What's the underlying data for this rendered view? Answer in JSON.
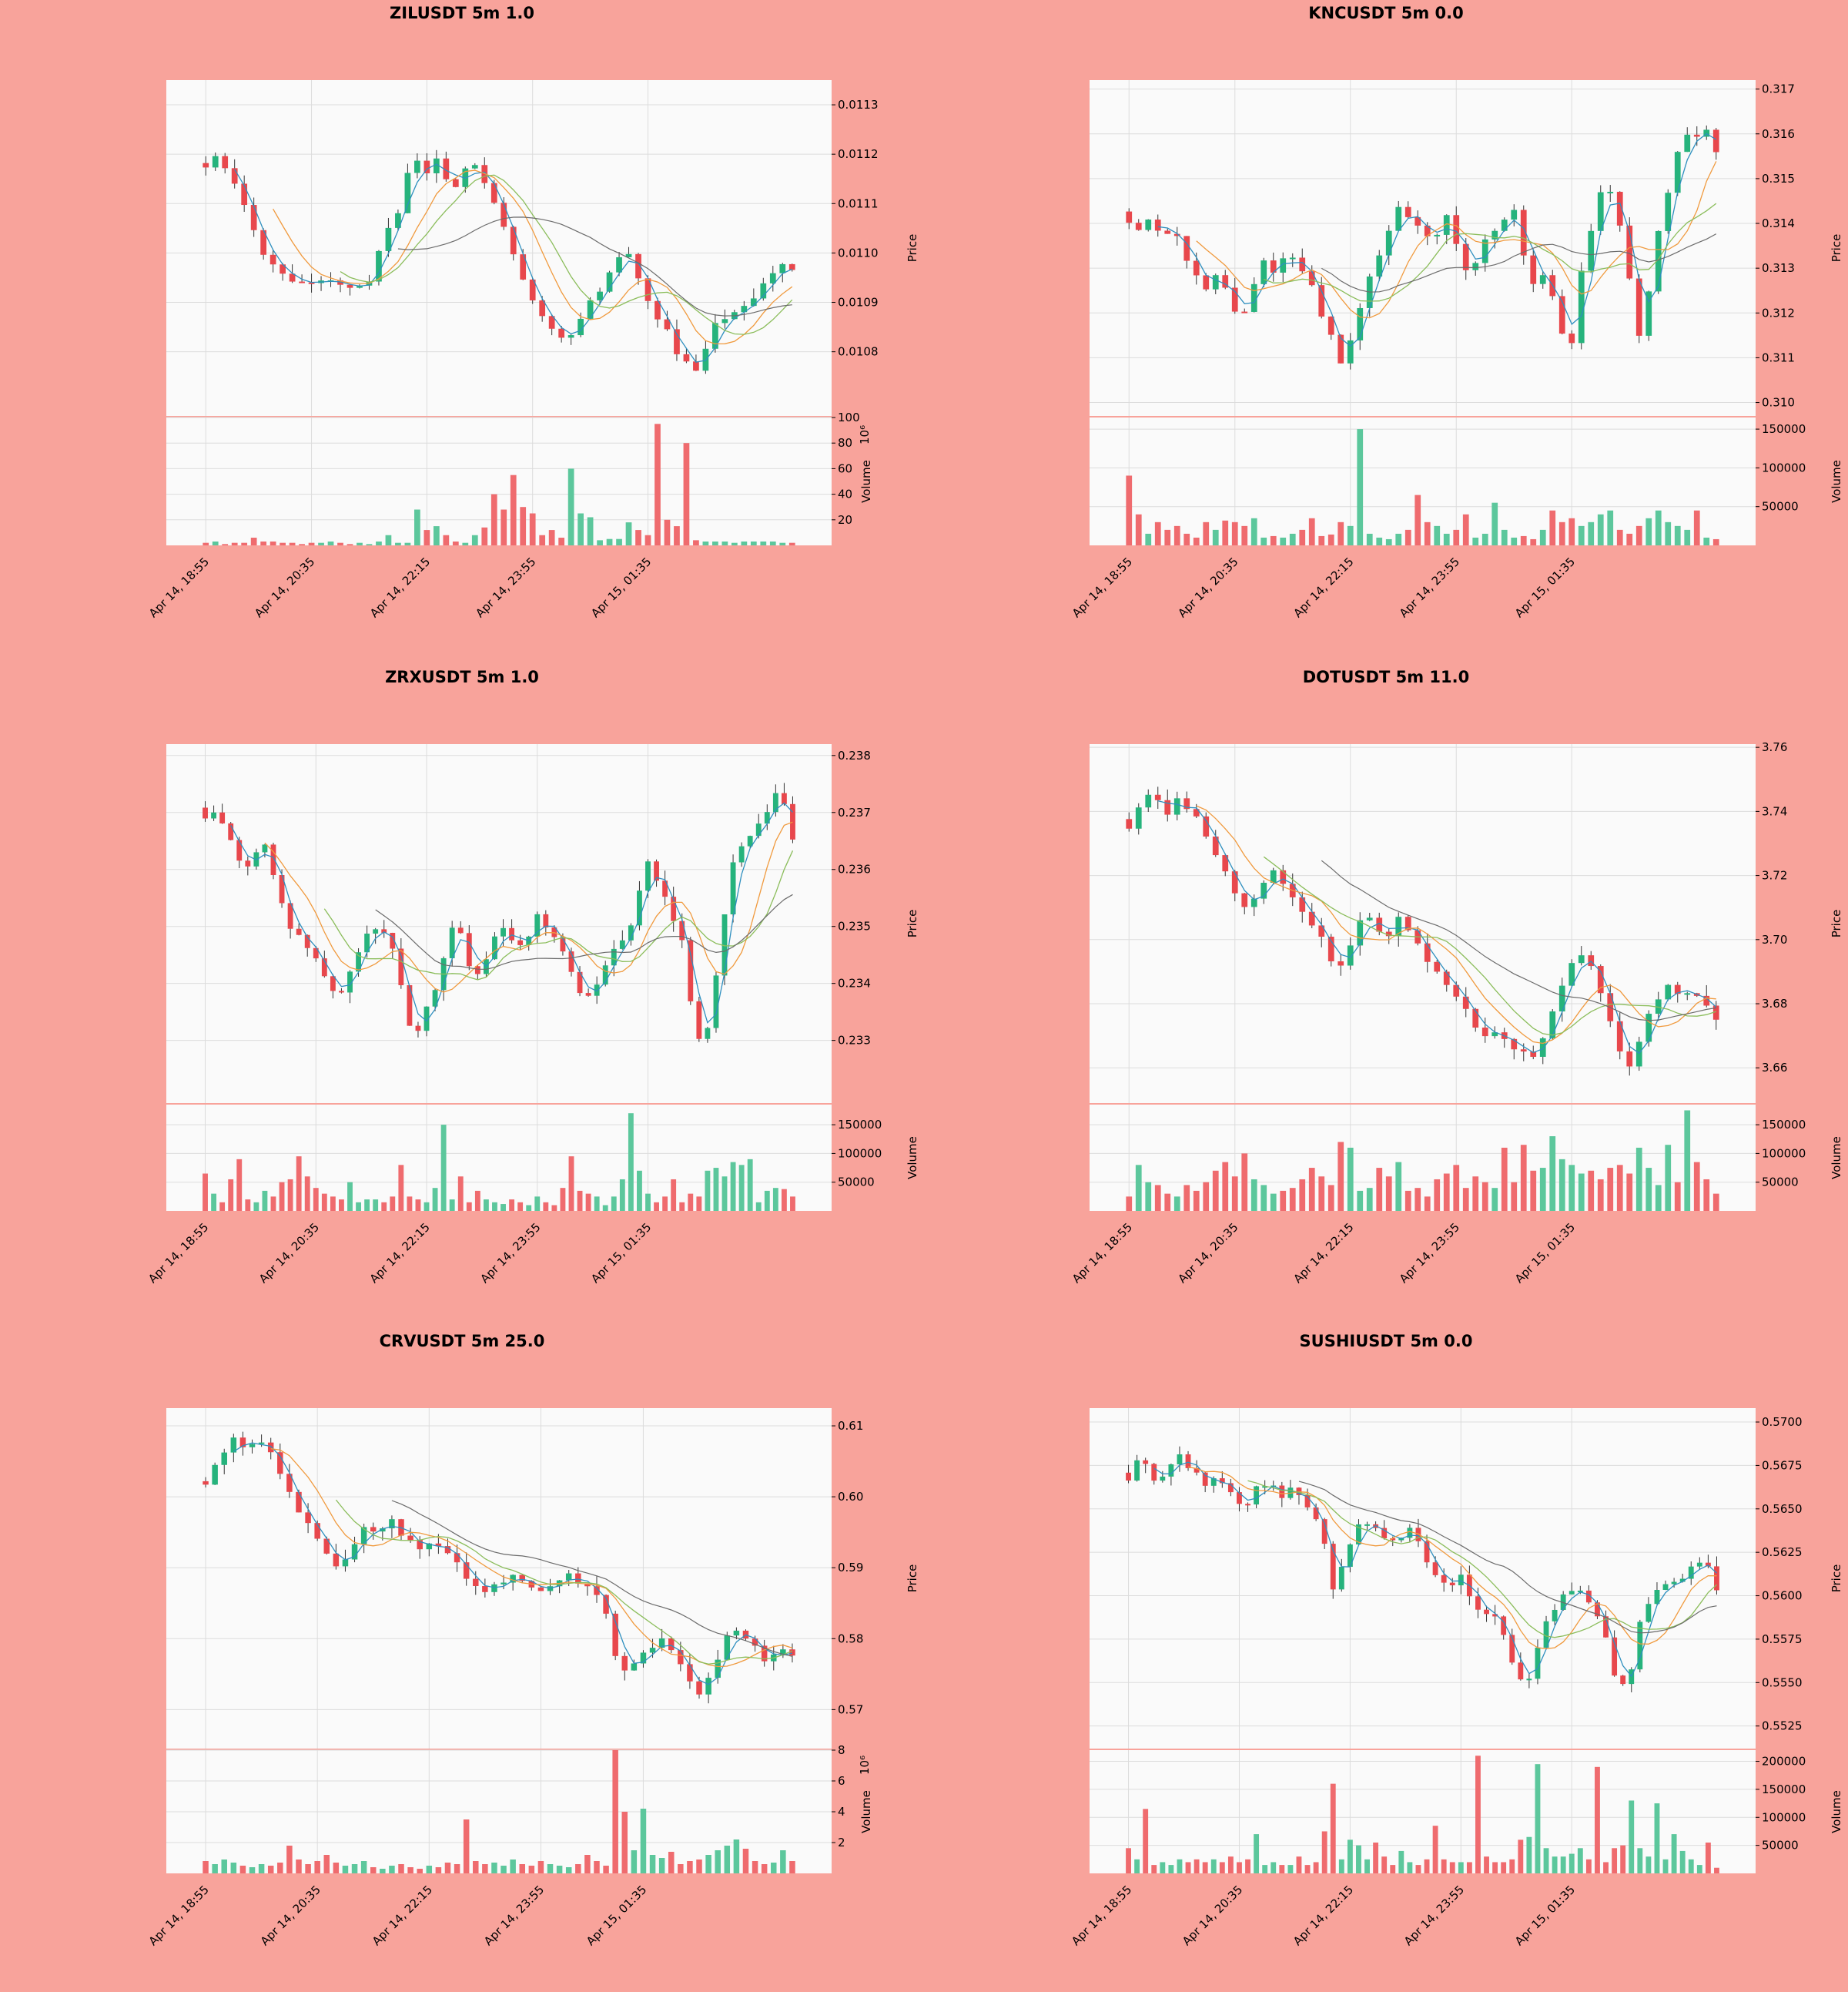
{
  "figure": {
    "background": "#f8a39b",
    "panel_bg": "#fafafa",
    "grid": "#dcdcdc"
  },
  "colors": {
    "up": "#26b37c",
    "down": "#e8474c",
    "vol_up": "#5cc79c",
    "vol_down": "#ef6b6e",
    "ma_fast": "#2e8fbf",
    "ma_mid": "#f09a3e",
    "ma_mid2": "#8bbd5b",
    "ma_slow": "#6b6b6b"
  },
  "chart_data": [
    {
      "type": "candlestick",
      "title": "ZILUSDT 5m 1.0",
      "price_ylim": [
        0.01067,
        0.01135
      ],
      "price_ticks": [
        "0.0108",
        "0.0109",
        "0.0110",
        "0.0111",
        "0.0112",
        "0.0113"
      ],
      "volume_ylim": [
        0,
        100
      ],
      "volume_ticks": [
        "20",
        "40",
        "60",
        "80",
        "100"
      ],
      "volume_exponent": "1e6",
      "price_label": "Price",
      "volume_label": "Volume",
      "xticks": [
        "Apr 14, 18:55",
        "Apr 14, 20:35",
        "Apr 14, 22:15",
        "Apr 14, 23:55",
        "Apr 15, 01:35"
      ],
      "keypoints": [
        0.01117,
        0.0112,
        0.01115,
        0.01113,
        0.01105,
        0.011,
        0.01098,
        0.01095,
        0.01094,
        0.01093,
        0.01095,
        0.01094,
        0.01093,
        0.01094,
        0.01093,
        0.011,
        0.01105,
        0.0111,
        0.01122,
        0.01115,
        0.0112,
        0.01115,
        0.01112,
        0.0112,
        0.01115,
        0.0111,
        0.01105,
        0.01098,
        0.01092,
        0.01088,
        0.01085,
        0.01083,
        0.01084,
        0.01088,
        0.01092,
        0.01095,
        0.011,
        0.011,
        0.01092,
        0.01087,
        0.01085,
        0.0108,
        0.01078,
        0.01076,
        0.01085,
        0.01087,
        0.01088,
        0.0109,
        0.01092,
        0.01095,
        0.01098,
        0.01096
      ],
      "volume_keys": [
        2,
        3,
        1,
        2,
        2,
        6,
        3,
        3,
        2,
        2,
        1,
        2,
        2,
        3,
        2,
        1,
        2,
        1,
        3,
        8,
        2,
        2,
        28,
        12,
        15,
        8,
        3,
        2,
        8,
        14,
        40,
        28,
        55,
        30,
        25,
        8,
        12,
        6,
        60,
        25,
        22,
        4,
        5,
        5,
        18,
        12,
        8,
        95,
        20,
        15,
        80,
        4,
        3,
        3,
        3,
        2,
        3,
        3,
        3,
        3,
        2,
        2
      ]
    },
    {
      "type": "candlestick",
      "title": "KNCUSDT 5m 0.0",
      "price_ylim": [
        0.3097,
        0.3172
      ],
      "price_ticks": [
        "0.310",
        "0.311",
        "0.312",
        "0.313",
        "0.314",
        "0.315",
        "0.316",
        "0.317"
      ],
      "volume_ylim": [
        0,
        165000
      ],
      "volume_ticks": [
        "50000",
        "100000",
        "150000"
      ],
      "volume_exponent": "",
      "price_label": "Price",
      "volume_label": "Volume",
      "xticks": [
        "Apr 14, 18:55",
        "Apr 14, 20:35",
        "Apr 14, 22:15",
        "Apr 14, 23:55",
        "Apr 15, 01:35"
      ],
      "keypoints": [
        0.314,
        0.3138,
        0.3143,
        0.3135,
        0.314,
        0.3132,
        0.3128,
        0.3125,
        0.313,
        0.3122,
        0.3118,
        0.3126,
        0.3132,
        0.3128,
        0.3135,
        0.313,
        0.3128,
        0.312,
        0.3114,
        0.3108,
        0.3118,
        0.3126,
        0.3132,
        0.3138,
        0.3144,
        0.314,
        0.3138,
        0.3135,
        0.3143,
        0.3136,
        0.3128,
        0.3133,
        0.3138,
        0.314,
        0.3145,
        0.3132,
        0.3125,
        0.313,
        0.3118,
        0.311,
        0.3128,
        0.314,
        0.315,
        0.3145,
        0.3135,
        0.3112,
        0.3125,
        0.314,
        0.315,
        0.316,
        0.3158,
        0.3161,
        0.3156
      ],
      "volume_keys": [
        90000,
        40000,
        15000,
        30000,
        20000,
        25000,
        15000,
        10000,
        30000,
        20000,
        32000,
        30000,
        25000,
        35000,
        10000,
        12000,
        10000,
        15000,
        20000,
        35000,
        12000,
        14000,
        30000,
        25000,
        150000,
        15000,
        10000,
        8000,
        15000,
        20000,
        65000,
        30000,
        25000,
        15000,
        20000,
        40000,
        10000,
        15000,
        55000,
        20000,
        10000,
        12000,
        8000,
        20000,
        45000,
        30000,
        35000,
        25000,
        30000,
        40000,
        45000,
        20000,
        15000,
        25000,
        35000,
        45000,
        30000,
        25000,
        20000,
        45000,
        10000,
        8000
      ]
    },
    {
      "type": "candlestick",
      "title": "ZRXUSDT 5m 1.0",
      "price_ylim": [
        0.2319,
        0.2382
      ],
      "price_ticks": [
        "0.233",
        "0.234",
        "0.235",
        "0.236",
        "0.237",
        "0.238"
      ],
      "volume_ylim": [
        0,
        185000
      ],
      "volume_ticks": [
        "50000",
        "100000",
        "150000"
      ],
      "volume_exponent": "",
      "price_label": "Price",
      "volume_label": "Volume",
      "xticks": [
        "Apr 14, 18:55",
        "Apr 14, 20:35",
        "Apr 14, 22:15",
        "Apr 14, 23:55",
        "Apr 15, 01:35"
      ],
      "keypoints": [
        0.2369,
        0.237,
        0.2366,
        0.236,
        0.2362,
        0.2365,
        0.2355,
        0.235,
        0.2347,
        0.2345,
        0.234,
        0.2338,
        0.2343,
        0.2348,
        0.235,
        0.2348,
        0.234,
        0.233,
        0.2335,
        0.234,
        0.235,
        0.2348,
        0.234,
        0.2345,
        0.235,
        0.2348,
        0.2346,
        0.2352,
        0.235,
        0.2347,
        0.2342,
        0.2336,
        0.234,
        0.2345,
        0.2348,
        0.235,
        0.2362,
        0.2358,
        0.2352,
        0.2348,
        0.233,
        0.2332,
        0.2345,
        0.236,
        0.2365,
        0.2367,
        0.237,
        0.2375,
        0.2365
      ],
      "volume_keys": [
        65000,
        30000,
        15000,
        55000,
        90000,
        20000,
        15000,
        35000,
        25000,
        50000,
        55000,
        95000,
        60000,
        40000,
        30000,
        25000,
        20000,
        50000,
        15000,
        20000,
        20000,
        15000,
        25000,
        80000,
        25000,
        20000,
        15000,
        40000,
        150000,
        20000,
        60000,
        15000,
        35000,
        20000,
        15000,
        12000,
        20000,
        15000,
        10000,
        25000,
        15000,
        10000,
        40000,
        95000,
        35000,
        30000,
        25000,
        10000,
        25000,
        55000,
        170000,
        70000,
        30000,
        15000,
        25000,
        55000,
        15000,
        30000,
        25000,
        70000,
        75000,
        60000,
        85000,
        80000,
        90000,
        15000,
        35000,
        40000,
        38000,
        25000
      ]
    },
    {
      "type": "candlestick",
      "title": "DOTUSDT 5m 11.0",
      "price_ylim": [
        3.649,
        3.761
      ],
      "price_ticks": [
        "3.66",
        "3.68",
        "3.70",
        "3.72",
        "3.74",
        "3.76"
      ],
      "volume_ylim": [
        0,
        185000
      ],
      "volume_ticks": [
        "50000",
        "100000",
        "150000"
      ],
      "volume_exponent": "",
      "price_label": "Price",
      "volume_label": "Volume",
      "xticks": [
        "Apr 14, 18:55",
        "Apr 14, 20:35",
        "Apr 14, 22:15",
        "Apr 14, 23:55",
        "Apr 15, 01:35"
      ],
      "keypoints": [
        3.735,
        3.742,
        3.748,
        3.738,
        3.745,
        3.74,
        3.735,
        3.728,
        3.72,
        3.712,
        3.71,
        3.718,
        3.722,
        3.715,
        3.71,
        3.705,
        3.7,
        3.688,
        3.698,
        3.708,
        3.705,
        3.7,
        3.707,
        3.702,
        3.695,
        3.69,
        3.685,
        3.68,
        3.675,
        3.67,
        3.672,
        3.668,
        3.665,
        3.662,
        3.67,
        3.682,
        3.692,
        3.695,
        3.69,
        3.68,
        3.665,
        3.66,
        3.672,
        3.68,
        3.685,
        3.683,
        3.684,
        3.68,
        3.675
      ],
      "volume_keys": [
        25000,
        80000,
        50000,
        45000,
        30000,
        25000,
        45000,
        35000,
        50000,
        70000,
        85000,
        60000,
        100000,
        55000,
        45000,
        30000,
        35000,
        40000,
        55000,
        75000,
        60000,
        45000,
        120000,
        110000,
        35000,
        40000,
        75000,
        60000,
        85000,
        35000,
        40000,
        25000,
        55000,
        65000,
        80000,
        40000,
        60000,
        50000,
        40000,
        110000,
        50000,
        115000,
        70000,
        75000,
        130000,
        90000,
        80000,
        65000,
        70000,
        55000,
        75000,
        80000,
        65000,
        110000,
        75000,
        45000,
        115000,
        50000,
        175000,
        85000,
        55000,
        30000
      ]
    },
    {
      "type": "candlestick",
      "title": "CRVUSDT 5m 25.0",
      "price_ylim": [
        0.5645,
        0.6125
      ],
      "price_ticks": [
        "0.57",
        "0.58",
        "0.59",
        "0.60",
        "0.61"
      ],
      "volume_ylim": [
        0,
        8
      ],
      "volume_ticks": [
        "2",
        "4",
        "6",
        "8"
      ],
      "volume_exponent": "1e6",
      "price_label": "Price",
      "volume_label": "Volume",
      "xticks": [
        "Apr 14, 18:55",
        "Apr 14, 20:35",
        "Apr 14, 22:15",
        "Apr 14, 23:55",
        "Apr 15, 01:35"
      ],
      "keypoints": [
        0.602,
        0.605,
        0.608,
        0.607,
        0.608,
        0.606,
        0.602,
        0.598,
        0.595,
        0.592,
        0.59,
        0.593,
        0.596,
        0.595,
        0.597,
        0.594,
        0.593,
        0.594,
        0.592,
        0.59,
        0.588,
        0.586,
        0.588,
        0.589,
        0.588,
        0.587,
        0.588,
        0.589,
        0.588,
        0.587,
        0.584,
        0.575,
        0.576,
        0.578,
        0.58,
        0.578,
        0.575,
        0.572,
        0.575,
        0.58,
        0.581,
        0.579,
        0.577,
        0.579,
        0.578
      ],
      "volume_keys": [
        0.8,
        0.6,
        0.9,
        0.7,
        0.5,
        0.4,
        0.6,
        0.5,
        0.7,
        1.8,
        0.9,
        0.6,
        0.8,
        1.2,
        0.7,
        0.5,
        0.6,
        0.8,
        0.4,
        0.3,
        0.5,
        0.6,
        0.4,
        0.3,
        0.5,
        0.4,
        0.7,
        0.6,
        3.5,
        0.8,
        0.6,
        0.7,
        0.5,
        0.9,
        0.6,
        0.5,
        0.8,
        0.6,
        0.5,
        0.4,
        0.6,
        1.2,
        0.8,
        0.5,
        8.0,
        4.0,
        1.5,
        4.2,
        1.2,
        1.0,
        1.4,
        0.6,
        0.8,
        0.9,
        1.2,
        1.5,
        1.8,
        2.2,
        1.6,
        0.8,
        0.6,
        0.7,
        1.5,
        0.8
      ]
    },
    {
      "type": "candlestick",
      "title": "SUSHIUSDT 5m 0.0",
      "price_ylim": [
        0.5512,
        0.5708
      ],
      "price_ticks": [
        "0.5525",
        "0.5550",
        "0.5575",
        "0.5600",
        "0.5625",
        "0.5650",
        "0.5675",
        "0.5700"
      ],
      "volume_ylim": [
        0,
        220000
      ],
      "volume_ticks": [
        "50000",
        "100000",
        "150000",
        "200000"
      ],
      "volume_exponent": "",
      "price_label": "Price",
      "volume_label": "Volume",
      "xticks": [
        "Apr 14, 18:55",
        "Apr 14, 20:35",
        "Apr 14, 22:15",
        "Apr 14, 23:55",
        "Apr 15, 01:35"
      ],
      "keypoints": [
        0.5668,
        0.568,
        0.5665,
        0.5673,
        0.568,
        0.5672,
        0.5663,
        0.5668,
        0.566,
        0.565,
        0.5662,
        0.5665,
        0.5658,
        0.5662,
        0.565,
        0.564,
        0.5605,
        0.5625,
        0.564,
        0.5642,
        0.5635,
        0.5632,
        0.564,
        0.5625,
        0.561,
        0.5605,
        0.5612,
        0.5595,
        0.559,
        0.5585,
        0.556,
        0.5545,
        0.557,
        0.559,
        0.56,
        0.5605,
        0.5595,
        0.5585,
        0.5555,
        0.5545,
        0.5585,
        0.56,
        0.5605,
        0.561,
        0.5615,
        0.562,
        0.5605
      ],
      "volume_keys": [
        45000,
        25000,
        115000,
        15000,
        20000,
        15000,
        25000,
        20000,
        25000,
        20000,
        25000,
        20000,
        30000,
        20000,
        25000,
        70000,
        15000,
        20000,
        15000,
        15000,
        30000,
        15000,
        20000,
        75000,
        160000,
        25000,
        60000,
        50000,
        25000,
        55000,
        30000,
        15000,
        40000,
        20000,
        15000,
        25000,
        85000,
        25000,
        20000,
        20000,
        20000,
        210000,
        30000,
        20000,
        20000,
        25000,
        60000,
        65000,
        195000,
        45000,
        30000,
        30000,
        35000,
        45000,
        25000,
        190000,
        20000,
        45000,
        50000,
        130000,
        45000,
        30000,
        125000,
        25000,
        70000,
        40000,
        25000,
        15000,
        55000,
        10000
      ]
    }
  ]
}
